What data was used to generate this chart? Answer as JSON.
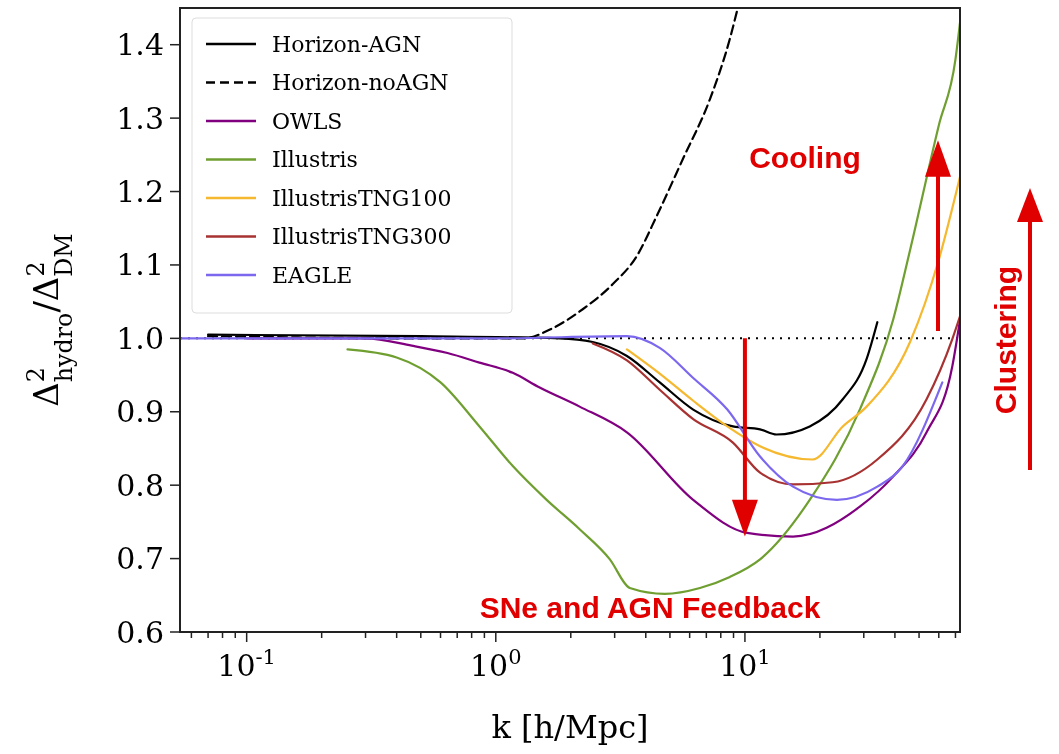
{
  "chart_data": {
    "type": "line",
    "xlabel": "k [h/Mpc]",
    "ylabel": "Δ$^{2}$$_{hydro}$/Δ$^{2}$$_{DM}$",
    "log": "x",
    "xlim": [
      0.054,
      73
    ],
    "ylim": [
      0.6,
      1.45
    ],
    "xticks": [
      {
        "value": 0.06,
        "label": null
      },
      {
        "value": 0.07,
        "label": null
      },
      {
        "value": 0.08,
        "label": null
      },
      {
        "value": 0.09,
        "label": null
      },
      {
        "value": 0.1,
        "label": "10$^{-1}$"
      },
      {
        "value": 0.2,
        "label": null
      },
      {
        "value": 0.3,
        "label": null
      },
      {
        "value": 0.4,
        "label": null
      },
      {
        "value": 0.5,
        "label": null
      },
      {
        "value": 0.6,
        "label": null
      },
      {
        "value": 0.7,
        "label": null
      },
      {
        "value": 0.8,
        "label": null
      },
      {
        "value": 0.9,
        "label": null
      },
      {
        "value": 1,
        "label": "10$^{0}$"
      },
      {
        "value": 2,
        "label": null
      },
      {
        "value": 3,
        "label": null
      },
      {
        "value": 4,
        "label": null
      },
      {
        "value": 5,
        "label": null
      },
      {
        "value": 6,
        "label": null
      },
      {
        "value": 7,
        "label": null
      },
      {
        "value": 8,
        "label": null
      },
      {
        "value": 9,
        "label": null
      },
      {
        "value": 10,
        "label": "10$^{1}$"
      },
      {
        "value": 20,
        "label": null
      },
      {
        "value": 30,
        "label": null
      },
      {
        "value": 40,
        "label": null
      },
      {
        "value": 50,
        "label": null
      },
      {
        "value": 60,
        "label": null
      },
      {
        "value": 70,
        "label": null
      }
    ],
    "yticks": [
      {
        "value": 0.6,
        "label": "0.6"
      },
      {
        "value": 0.7,
        "label": "0.7"
      },
      {
        "value": 0.8,
        "label": "0.8"
      },
      {
        "value": 0.9,
        "label": "0.9"
      },
      {
        "value": 1,
        "label": "1.0"
      },
      {
        "value": 1.1,
        "label": "1.1"
      },
      {
        "value": 1.2,
        "label": "1.2"
      },
      {
        "value": 1.3,
        "label": "1.3"
      },
      {
        "value": 1.4,
        "label": "1.4"
      }
    ],
    "grid": false,
    "legend": "top left",
    "marker": "none",
    "series": [
      {
        "name": "Horizon-AGN",
        "color": "#000000",
        "line_style": "solid",
        "x": [
          0.07,
          0.5,
          1.8,
          2.45,
          3.36,
          4.55,
          6.2,
          8.95,
          11.5,
          13.4,
          18.2,
          24.7,
          30.8,
          34
        ],
        "values": [
          1.005,
          1.003,
          1.0,
          0.995,
          0.976,
          0.94,
          0.903,
          0.88,
          0.876,
          0.869,
          0.88,
          0.917,
          0.972,
          1.022
        ]
      },
      {
        "name": "Horizon-noAGN",
        "color": "#000000",
        "line_style": "dashed",
        "x": [
          0.07,
          0.5,
          1.3,
          1.65,
          2.24,
          2.95,
          3.68,
          4.43,
          5.63,
          7.24,
          8.7,
          9.36
        ],
        "values": [
          1.003,
          1.0,
          1.0,
          1.012,
          1.04,
          1.074,
          1.112,
          1.167,
          1.244,
          1.326,
          1.408,
          1.45
        ]
      },
      {
        "name": "OWLS",
        "color": "#800080",
        "line_style": "solid",
        "x": [
          0.1,
          0.3,
          0.46,
          0.64,
          0.86,
          1.17,
          1.5,
          2.17,
          3.36,
          6.2,
          10.2,
          15.6,
          29,
          39.4,
          53.6,
          68,
          73
        ],
        "values": [
          1.0,
          1.0,
          0.99,
          0.98,
          0.967,
          0.953,
          0.933,
          0.907,
          0.872,
          0.78,
          0.735,
          0.73,
          0.771,
          0.812,
          0.872,
          0.962,
          1.025
        ]
      },
      {
        "name": "Illustris",
        "color": "#6f9f30",
        "line_style": "solid",
        "x": [
          0.254,
          0.4,
          0.6,
          0.86,
          1.17,
          1.6,
          2.17,
          2.87,
          3.45,
          4.77,
          6.6,
          8.7,
          11.5,
          18.2,
          29,
          39.4,
          46,
          60,
          70,
          73
        ],
        "values": [
          0.985,
          0.974,
          0.94,
          0.88,
          0.826,
          0.78,
          0.74,
          0.699,
          0.66,
          0.652,
          0.66,
          0.675,
          0.699,
          0.78,
          0.904,
          1.026,
          1.12,
          1.29,
          1.38,
          1.43
        ]
      },
      {
        "name": "IllustrisTNG100",
        "color": "#f5b82e",
        "line_style": "solid",
        "x": [
          3.36,
          4.55,
          6.2,
          8.5,
          11.5,
          18.7,
          24.7,
          30.8,
          46,
          60,
          73
        ],
        "values": [
          0.985,
          0.952,
          0.915,
          0.88,
          0.853,
          0.835,
          0.88,
          0.907,
          0.995,
          1.107,
          1.22
        ]
      },
      {
        "name": "IllustrisTNG300",
        "color": "#a83232",
        "line_style": "solid",
        "x": [
          2.45,
          3.36,
          4.55,
          6.2,
          8.95,
          11.5,
          15.6,
          22.5,
          34,
          53.6,
          68,
          73
        ],
        "values": [
          0.993,
          0.97,
          0.93,
          0.89,
          0.858,
          0.817,
          0.801,
          0.804,
          0.835,
          0.917,
          0.999,
          1.03
        ]
      },
      {
        "name": "EAGLE",
        "color": "#7b68ee",
        "line_style": "solid",
        "x": [
          0.054,
          1.0,
          3.36,
          4.55,
          6.2,
          8.5,
          11.5,
          15.6,
          23.4,
          34,
          43,
          62
        ],
        "values": [
          1.0,
          1.0,
          1.003,
          0.987,
          0.946,
          0.903,
          0.839,
          0.798,
          0.78,
          0.798,
          0.826,
          0.94
        ]
      }
    ],
    "ref_lines": [
      {
        "axis": "y",
        "value": 1.0,
        "color": "#000000",
        "line_style": "dotted"
      }
    ],
    "annotations": [
      "Cooling",
      "SNe and AGN Feedback",
      "Clustering"
    ]
  }
}
